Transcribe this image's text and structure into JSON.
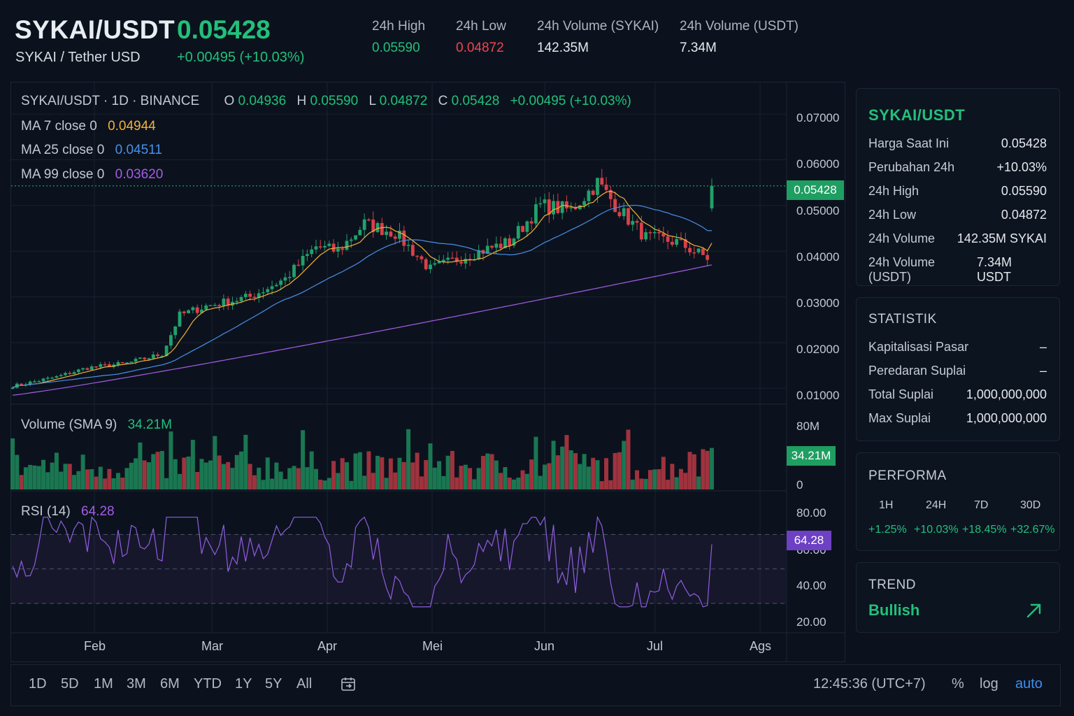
{
  "header": {
    "pair": "SYKAI/USDT",
    "pair_full": "SYKAI / Tether USD",
    "last_price": "0.05428",
    "change": "+0.00495 (+10.03%)",
    "stats": [
      {
        "label": "24h High",
        "value": "0.05590",
        "color": "#22c07a"
      },
      {
        "label": "24h Low",
        "value": "0.04872",
        "color": "#f0454f"
      },
      {
        "label": "24h Volume (SYKAI)",
        "value": "142.35M",
        "color": "#e6e9ee"
      },
      {
        "label": "24h Volume (USDT)",
        "value": "7.34M",
        "color": "#e6e9ee"
      }
    ]
  },
  "chart": {
    "symbol_line": "SYKAI/USDT · 1D · BINANCE",
    "ohlc": {
      "o_label": "O",
      "o": "0.04936",
      "h_label": "H",
      "h": "0.05590",
      "l_label": "L",
      "l": "0.04872",
      "c_label": "C",
      "c": "0.05428",
      "chg": "+0.00495 (+10.03%)"
    },
    "ma7_label": "MA 7 close 0",
    "ma7_value": "0.04944",
    "ma7_color": "#f2b23a",
    "ma25_label": "MA 25 close 0",
    "ma25_value": "0.04511",
    "ma25_color": "#4a8fe8",
    "ma99_label": "MA 99 close 0",
    "ma99_value": "0.03620",
    "ma99_color": "#a55ce6",
    "price_axis": [
      "0.07000",
      "0.06000",
      "0.05000",
      "0.04000",
      "0.03000",
      "0.02000",
      "0.01000"
    ],
    "current_price_tag": "0.05428",
    "volume_label": "Volume (SMA 9)",
    "volume_value": "34.21M",
    "volume_tag": "34.21M",
    "volume_axis": [
      "80M",
      "0"
    ],
    "rsi_label": "RSI (14)",
    "rsi_value": "64.28",
    "rsi_tag": "64.28",
    "rsi_axis": [
      "80.00",
      "60.00",
      "40.00",
      "20.00"
    ],
    "x_axis": [
      "Feb",
      "Mar",
      "Apr",
      "Mei",
      "Jun",
      "Jul",
      "Ags"
    ]
  },
  "toolbar": {
    "ranges": [
      "1D",
      "5D",
      "1M",
      "3M",
      "6M",
      "YTD",
      "1Y",
      "5Y",
      "All"
    ],
    "time": "12:45:36 (UTC+7)",
    "percent": "%",
    "log": "log",
    "auto": "auto"
  },
  "side": {
    "info": {
      "title": "SYKAI/USDT",
      "rows": [
        {
          "k": "Harga Saat Ini",
          "v": "0.05428",
          "color": "#22c07a"
        },
        {
          "k": "Perubahan 24h",
          "v": "+10.03%",
          "color": "#22c07a"
        },
        {
          "k": "24h High",
          "v": "0.05590",
          "color": "#22c07a"
        },
        {
          "k": "24h Low",
          "v": "0.04872",
          "color": "#f0454f"
        },
        {
          "k": "24h Volume",
          "v": "142.35M SYKAI",
          "color": "#e6e9ee"
        },
        {
          "k": "24h Volume (USDT)",
          "v": "7.34M USDT",
          "color": "#e6e9ee"
        }
      ]
    },
    "statistik": {
      "title": "STATISTIK",
      "rows": [
        {
          "k": "Kapitalisasi Pasar",
          "v": "–"
        },
        {
          "k": "Peredaran Suplai",
          "v": "–"
        },
        {
          "k": "Total Suplai",
          "v": "1,000,000,000"
        },
        {
          "k": "Max Suplai",
          "v": "1,000,000,000"
        }
      ]
    },
    "performa": {
      "title": "PERFORMA",
      "periods": [
        {
          "p": "1H",
          "v": "+1.25%"
        },
        {
          "p": "24H",
          "v": "+10.03%"
        },
        {
          "p": "7D",
          "v": "+18.45%"
        },
        {
          "p": "30D",
          "v": "+32.67%"
        }
      ]
    },
    "trend": {
      "title": "TREND",
      "value": "Bullish"
    }
  },
  "chart_data": {
    "type": "candlestick",
    "symbol": "SYKAI/USDT",
    "interval": "1D",
    "ylim": [
      0.007,
      0.072
    ],
    "x_ticks": [
      "Feb",
      "Mar",
      "Apr",
      "Mei",
      "Jun",
      "Jul",
      "Ags"
    ],
    "close_anchors": [
      {
        "x": "Jan 15",
        "close": 0.0105
      },
      {
        "x": "Jan 25",
        "close": 0.0125
      },
      {
        "x": "Feb 01",
        "close": 0.0145
      },
      {
        "x": "Feb 10",
        "close": 0.0155
      },
      {
        "x": "Feb 18",
        "close": 0.0175
      },
      {
        "x": "Feb 22",
        "close": 0.026
      },
      {
        "x": "Feb 28",
        "close": 0.028
      },
      {
        "x": "Mar 10",
        "close": 0.03
      },
      {
        "x": "Mar 18",
        "close": 0.034
      },
      {
        "x": "Mar 25",
        "close": 0.041
      },
      {
        "x": "Mar 30",
        "close": 0.04
      },
      {
        "x": "Apr 05",
        "close": 0.046
      },
      {
        "x": "Apr 12",
        "close": 0.044
      },
      {
        "x": "Apr 20",
        "close": 0.036
      },
      {
        "x": "Apr 28",
        "close": 0.039
      },
      {
        "x": "May 08",
        "close": 0.042
      },
      {
        "x": "May 15",
        "close": 0.05
      },
      {
        "x": "May 22",
        "close": 0.049
      },
      {
        "x": "May 28",
        "close": 0.055
      },
      {
        "x": "Jun 02",
        "close": 0.049
      },
      {
        "x": "Jun 08",
        "close": 0.043
      },
      {
        "x": "Jun 15",
        "close": 0.042
      },
      {
        "x": "Jun 25",
        "close": 0.037
      },
      {
        "x": "Jul 05",
        "close": 0.04
      },
      {
        "x": "Jul 10",
        "close": 0.04
      },
      {
        "x": "Jul 15",
        "close": 0.0493
      },
      {
        "x": "Jul 17",
        "close": 0.05428
      }
    ],
    "last_candle": {
      "open": 0.04936,
      "high": 0.0559,
      "low": 0.04872,
      "close": 0.05428
    },
    "series": [
      {
        "name": "MA 7 close 0",
        "last": 0.04944
      },
      {
        "name": "MA 25 close 0",
        "last": 0.04511
      },
      {
        "name": "MA 99 close 0",
        "last": 0.0362
      }
    ],
    "volume": {
      "label": "Volume (SMA 9)",
      "last": "34.21M",
      "ylim": [
        0,
        80
      ]
    },
    "rsi": {
      "label": "RSI (14)",
      "last": 64.28,
      "ylim": [
        15,
        90
      ],
      "levels": [
        70,
        50,
        30
      ]
    }
  }
}
